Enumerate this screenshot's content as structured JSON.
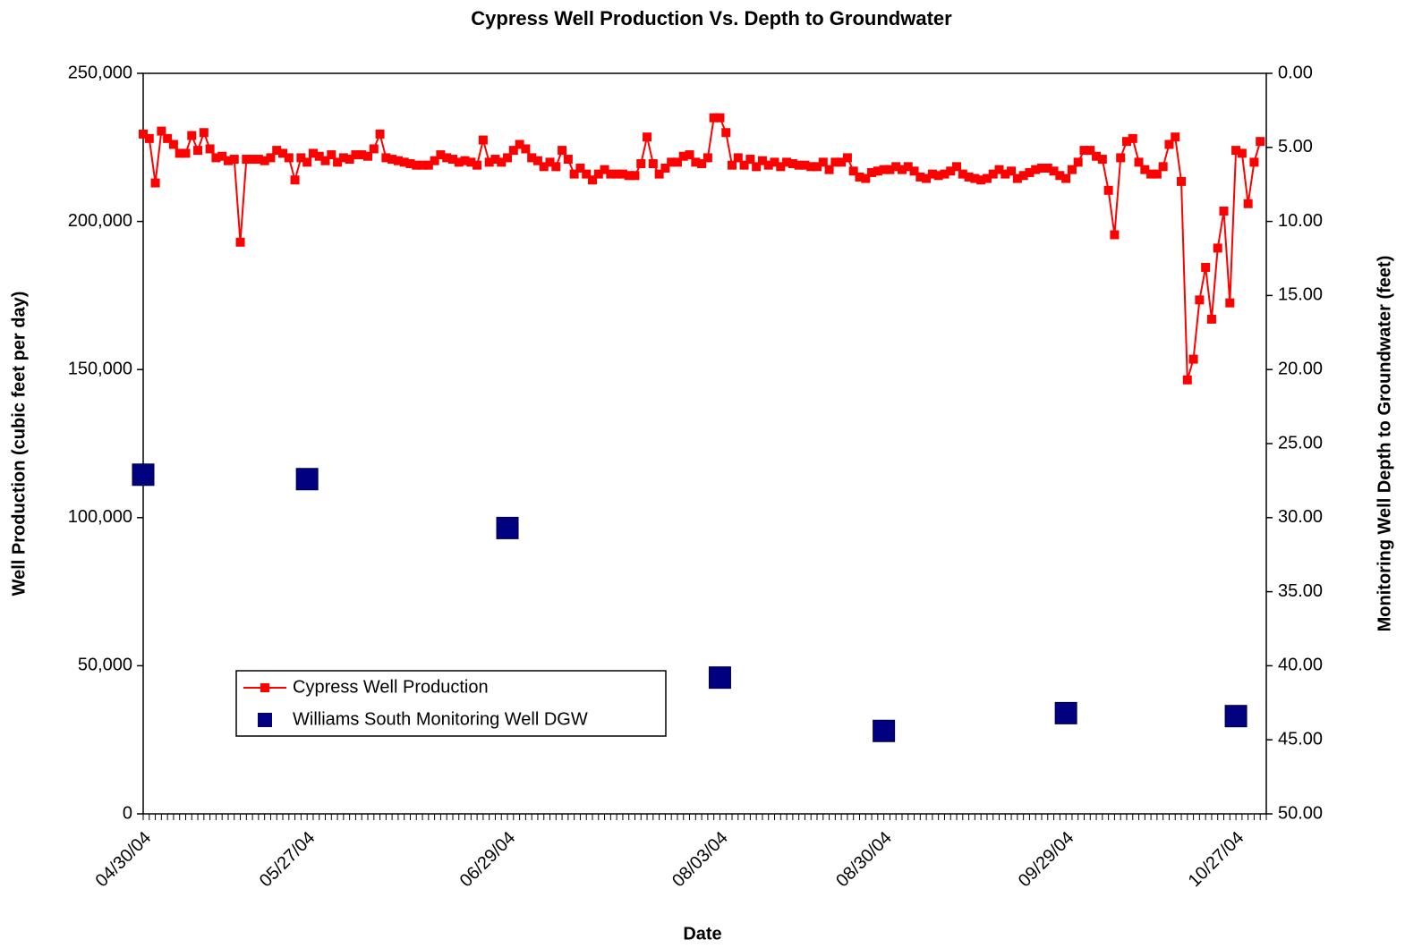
{
  "chart_data": {
    "type": "line",
    "title": "Cypress Well Production Vs. Depth to Groundwater",
    "x_label": "Date",
    "y_label": "Well Production (cubic feet per day)",
    "y2_label": "Monitoring Well Depth to Groundwater (feet)",
    "legend": "lower left",
    "grid": false,
    "ylim": [
      0,
      250000
    ],
    "yticks": [
      0,
      {
        "value": 50000,
        "label": "50,000"
      },
      {
        "value": 100000,
        "label": "100,000"
      },
      {
        "value": 150000,
        "label": "150,000"
      },
      {
        "value": 200000,
        "label": "200,000"
      },
      {
        "value": 250000,
        "label": "250,000"
      }
    ],
    "y2lim": [
      50,
      0
    ],
    "y2ticks": [
      {
        "value": 0,
        "label": "0.00"
      },
      {
        "value": 5,
        "label": "5.00"
      },
      {
        "value": 10,
        "label": "10.00"
      },
      {
        "value": 15,
        "label": "15.00"
      },
      {
        "value": 20,
        "label": "20.00"
      },
      {
        "value": 25,
        "label": "25.00"
      },
      {
        "value": 30,
        "label": "30.00"
      },
      {
        "value": 35,
        "label": "35.00"
      },
      {
        "value": 40,
        "label": "40.00"
      },
      {
        "value": 45,
        "label": "45.00"
      },
      {
        "value": 50,
        "label": "50.00"
      }
    ],
    "categories": [
      "04/30/04",
      null,
      null,
      null,
      null,
      null,
      null,
      null,
      null,
      null,
      null,
      null,
      null,
      null,
      null,
      null,
      null,
      null,
      null,
      null,
      null,
      null,
      null,
      null,
      null,
      null,
      null,
      "05/27/04",
      null,
      null,
      null,
      null,
      null,
      null,
      null,
      null,
      null,
      null,
      null,
      null,
      null,
      null,
      null,
      null,
      null,
      null,
      null,
      null,
      null,
      null,
      null,
      null,
      null,
      null,
      null,
      null,
      null,
      null,
      null,
      null,
      "06/29/04",
      null,
      null,
      null,
      null,
      null,
      null,
      null,
      null,
      null,
      null,
      null,
      null,
      null,
      null,
      null,
      null,
      null,
      null,
      null,
      null,
      null,
      null,
      null,
      null,
      null,
      null,
      null,
      null,
      null,
      null,
      null,
      null,
      null,
      null,
      "08/03/04",
      null,
      null,
      null,
      null,
      null,
      null,
      null,
      null,
      null,
      null,
      null,
      null,
      null,
      null,
      null,
      null,
      null,
      null,
      null,
      null,
      null,
      null,
      null,
      null,
      null,
      null,
      "08/30/04",
      null,
      null,
      null,
      null,
      null,
      null,
      null,
      null,
      null,
      null,
      null,
      null,
      null,
      null,
      null,
      null,
      null,
      null,
      null,
      null,
      null,
      null,
      null,
      null,
      null,
      null,
      null,
      null,
      null,
      "09/29/04",
      null,
      null,
      null,
      null,
      null,
      null,
      null,
      null,
      null,
      null,
      null,
      null,
      null,
      null,
      null,
      null,
      null,
      null,
      null,
      null,
      null,
      null,
      null,
      null,
      null,
      null,
      null,
      "10/27/04",
      null,
      null,
      null,
      null,
      null
    ],
    "series": [
      {
        "name": "Cypress Well Production",
        "color": "#ff0000",
        "marker": "square",
        "show_line": true,
        "values": [
          229500,
          228000,
          213000,
          230500,
          228000,
          226000,
          223000,
          223000,
          229000,
          224000,
          230000,
          224500,
          221500,
          222000,
          220500,
          221000,
          193000,
          221000,
          221000,
          221000,
          220500,
          221500,
          224000,
          223000,
          221500,
          214000,
          221500,
          220000,
          223000,
          222000,
          220500,
          222500,
          220000,
          221500,
          221000,
          222500,
          222500,
          222000,
          224500,
          229500,
          221500,
          221000,
          220500,
          220000,
          219500,
          219000,
          219000,
          219000,
          220500,
          222500,
          221500,
          221000,
          220000,
          220500,
          220000,
          219000,
          227500,
          220000,
          221000,
          220000,
          221500,
          224000,
          226000,
          224500,
          221500,
          220500,
          218500,
          220000,
          218500,
          224000,
          221000,
          216000,
          218000,
          216000,
          214000,
          216000,
          217500,
          216000,
          216000,
          216000,
          215500,
          215500,
          219500,
          228500,
          219500,
          216000,
          218000,
          220000,
          220000,
          222000,
          222500,
          220000,
          219500,
          221500,
          235000,
          235000,
          230000,
          219000,
          221500,
          219000,
          221000,
          218500,
          220500,
          219000,
          220000,
          218500,
          220000,
          219500,
          219000,
          219000,
          218500,
          218500,
          220000,
          217500,
          220000,
          220000,
          221500,
          217000,
          215000,
          214500,
          216500,
          217000,
          217500,
          217500,
          218500,
          217500,
          218500,
          217000,
          215000,
          214500,
          216000,
          215500,
          216000,
          217000,
          218500,
          216000,
          215000,
          214500,
          214000,
          214500,
          216000,
          217500,
          216000,
          217000,
          214500,
          215500,
          216500,
          217500,
          218000,
          218000,
          217000,
          215500,
          214500,
          217500,
          220000,
          224000,
          224000,
          222000,
          221000,
          210500,
          195500,
          221500,
          227000,
          228000,
          220000,
          217500,
          216000,
          216000,
          218500,
          226000,
          228500,
          213500,
          146500,
          153500,
          173500,
          184500,
          167000,
          191000,
          203500,
          172500,
          224000,
          223000,
          206000,
          220000,
          227000,
          null
        ]
      },
      {
        "name": "Williams South Monitoring Well DGW",
        "color": "#000080",
        "marker": "square",
        "show_line": false,
        "axis": "y2",
        "values": [
          27.1,
          null,
          null,
          null,
          null,
          null,
          null,
          null,
          null,
          null,
          null,
          null,
          null,
          null,
          null,
          null,
          null,
          null,
          null,
          null,
          null,
          null,
          null,
          null,
          null,
          null,
          null,
          27.4,
          null,
          null,
          null,
          null,
          null,
          null,
          null,
          null,
          null,
          null,
          null,
          null,
          null,
          null,
          null,
          null,
          null,
          null,
          null,
          null,
          null,
          null,
          null,
          null,
          null,
          null,
          null,
          null,
          null,
          null,
          null,
          null,
          30.7,
          null,
          null,
          null,
          null,
          null,
          null,
          null,
          null,
          null,
          null,
          null,
          null,
          null,
          null,
          null,
          null,
          null,
          null,
          null,
          null,
          null,
          null,
          null,
          null,
          null,
          null,
          null,
          null,
          null,
          null,
          null,
          null,
          null,
          null,
          40.8,
          null,
          null,
          null,
          null,
          null,
          null,
          null,
          null,
          null,
          null,
          null,
          null,
          null,
          null,
          null,
          null,
          null,
          null,
          null,
          null,
          null,
          null,
          null,
          null,
          null,
          null,
          44.4,
          null,
          null,
          null,
          null,
          null,
          null,
          null,
          null,
          null,
          null,
          null,
          null,
          null,
          null,
          null,
          null,
          null,
          null,
          null,
          null,
          null,
          null,
          null,
          null,
          null,
          null,
          null,
          null,
          null,
          43.2,
          null,
          null,
          null,
          null,
          null,
          null,
          null,
          null,
          null,
          null,
          null,
          null,
          null,
          null,
          null,
          null,
          null,
          null,
          null,
          null,
          null,
          null,
          null,
          null,
          null,
          null,
          null,
          43.4,
          null,
          null,
          null,
          null,
          null
        ]
      }
    ]
  }
}
